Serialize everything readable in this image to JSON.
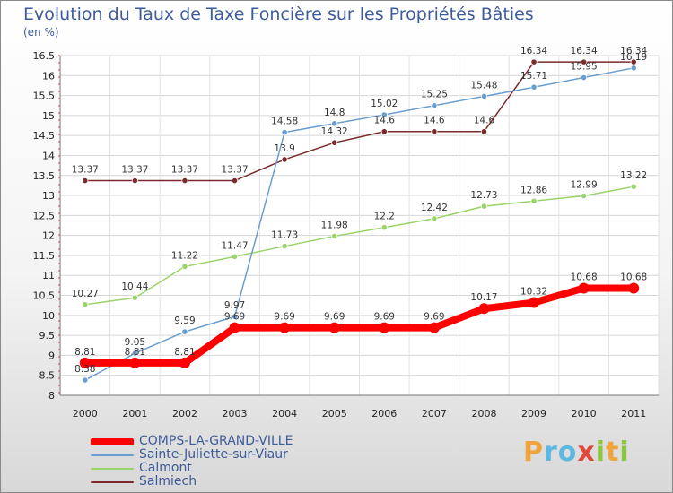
{
  "title": "Evolution du Taux de Taxe Foncière sur les Propriétés Bâties",
  "unit": "(en %)",
  "logo": {
    "letters": [
      "P",
      "r",
      "o",
      "x",
      "i",
      "t",
      "i"
    ],
    "colors": [
      "#f0a43c",
      "#5db8e0",
      "#5db8e0",
      "#e04a3a",
      "#8cc63f",
      "#f0a43c",
      "#8cc63f"
    ]
  },
  "chart_data": {
    "type": "line",
    "title": "Evolution du Taux de Taxe Foncière sur les Propriétés Bâties",
    "ylabel": "(en %)",
    "ylim": [
      8,
      16.5
    ],
    "yticks": [
      "8",
      "8.5",
      "9",
      "9.5",
      "10",
      "10.5",
      "11",
      "11.5",
      "12",
      "12.5",
      "13",
      "13.5",
      "14",
      "14.5",
      "15",
      "15.5",
      "16",
      "16.5"
    ],
    "x": [
      "2000",
      "2001",
      "2002",
      "2003",
      "2004",
      "2005",
      "2006",
      "2007",
      "2008",
      "2009",
      "2010",
      "2011"
    ],
    "grid": true,
    "legend_position": "bottom-left",
    "series": [
      {
        "name": "COMPS-LA-GRAND-VILLE",
        "color": "#ff0000",
        "values": [
          8.81,
          8.81,
          8.81,
          9.69,
          9.69,
          9.69,
          9.69,
          9.69,
          10.17,
          10.32,
          10.68,
          10.68
        ],
        "labels": [
          "8.81",
          "8.81",
          "8.81",
          "9.69",
          "9.69",
          "9.69",
          "9.69",
          "9.69",
          "10.17",
          "10.32",
          "10.68",
          "10.68"
        ]
      },
      {
        "name": "Sainte-Juliette-sur-Viaur",
        "color": "#6a9ed0",
        "values": [
          8.38,
          9.05,
          9.59,
          9.97,
          14.58,
          14.8,
          15.02,
          15.25,
          15.48,
          15.71,
          15.95,
          16.19
        ],
        "labels": [
          "8.38",
          "9.05",
          "9.59",
          "9.97",
          "14.58",
          "14.8",
          "15.02",
          "15.25",
          "15.48",
          "15.71",
          "15.95",
          "16.19"
        ]
      },
      {
        "name": "Calmont",
        "color": "#9ad468",
        "values": [
          10.27,
          10.44,
          11.22,
          11.47,
          11.73,
          11.98,
          12.2,
          12.42,
          12.73,
          12.86,
          12.99,
          13.22
        ],
        "labels": [
          "10.27",
          "10.44",
          "11.22",
          "11.47",
          "11.73",
          "11.98",
          "12.2",
          "12.42",
          "12.73",
          "12.86",
          "12.99",
          "13.22"
        ]
      },
      {
        "name": "Salmiech",
        "color": "#7a2a2a",
        "values": [
          13.37,
          13.37,
          13.37,
          13.37,
          13.9,
          14.32,
          14.6,
          14.6,
          14.6,
          16.34,
          16.34,
          16.34
        ],
        "labels": [
          "13.37",
          "13.37",
          "13.37",
          "13.37",
          "13.9",
          "14.32",
          "14.6",
          "14.6",
          "14.6",
          "16.34",
          "16.34",
          "16.34"
        ]
      }
    ]
  }
}
